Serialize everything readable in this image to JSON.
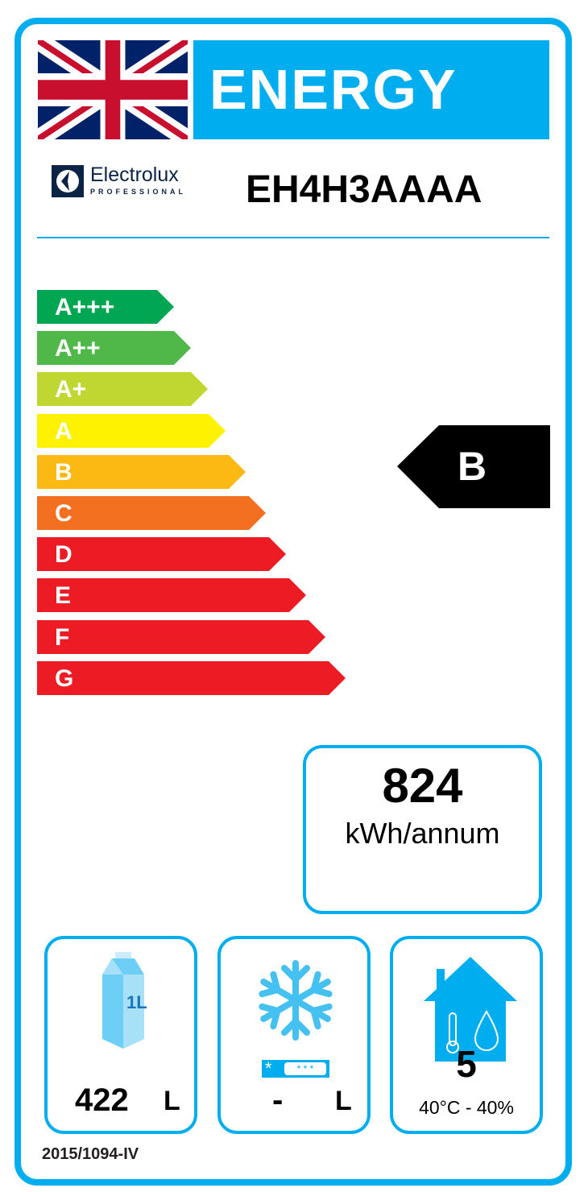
{
  "header": {
    "title": "ENERGY",
    "flag": "uk-flag-icon",
    "brand": "Electrolux",
    "brand_sub": "PROFESSIONAL",
    "model": "EH4H3AAAA"
  },
  "scale": [
    {
      "label": "A+++",
      "color": "#00a651"
    },
    {
      "label": "A++",
      "color": "#50b848"
    },
    {
      "label": "A+",
      "color": "#bfd730"
    },
    {
      "label": "A",
      "color": "#fff200"
    },
    {
      "label": "B",
      "color": "#fdb913"
    },
    {
      "label": "C",
      "color": "#f37021"
    },
    {
      "label": "D",
      "color": "#ed1c24"
    },
    {
      "label": "E",
      "color": "#ed1c24"
    },
    {
      "label": "F",
      "color": "#ed1c24"
    },
    {
      "label": "G",
      "color": "#ed1c24"
    }
  ],
  "rating": "B",
  "consumption": {
    "value": "824",
    "unit": "kWh/annum"
  },
  "volume": {
    "icon_label": "1L",
    "value": "422",
    "unit": "L"
  },
  "frozen": {
    "value": "-",
    "unit": "L"
  },
  "climate": {
    "class": "5",
    "conditions": "40°C - 40%"
  },
  "footer": "2015/1094-IV",
  "accent": "#00aeef"
}
